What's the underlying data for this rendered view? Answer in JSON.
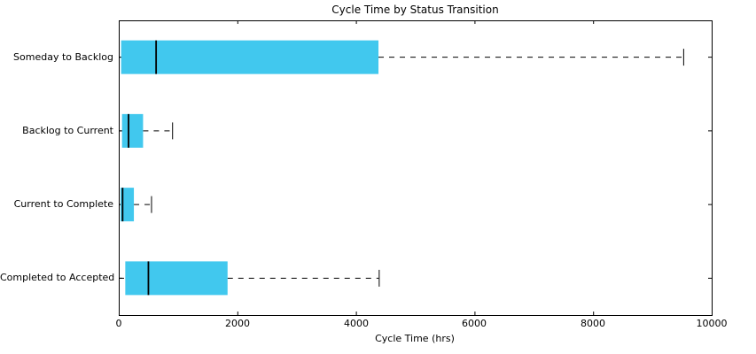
{
  "chart_data": {
    "type": "boxplot",
    "orientation": "horizontal",
    "title": "Cycle Time by Status Transition",
    "xlabel": "Cycle Time (hrs)",
    "ylabel": "",
    "xlim": [
      0,
      10000
    ],
    "xticks": [
      0,
      2000,
      4000,
      6000,
      8000,
      10000
    ],
    "xtick_labels": [
      "0",
      "2000",
      "4000",
      "6000",
      "8000",
      "10000"
    ],
    "grid": false,
    "legend": "none",
    "categories": [
      "Someday to Backlog",
      "Backlog to Current",
      "Current to Complete",
      "Completed to Accepted"
    ],
    "series": [
      {
        "category": "Someday to Backlog",
        "whisker_low": 0,
        "q1": 40,
        "median": 630,
        "q3": 4380,
        "whisker_high": 9520
      },
      {
        "category": "Backlog to Current",
        "whisker_low": 0,
        "q1": 55,
        "median": 165,
        "q3": 410,
        "whisker_high": 900
      },
      {
        "category": "Current to Complete",
        "whisker_low": 0,
        "q1": 30,
        "median": 65,
        "q3": 255,
        "whisker_high": 545
      },
      {
        "category": "Completed to Accepted",
        "whisker_low": 0,
        "q1": 110,
        "median": 500,
        "q3": 1835,
        "whisker_high": 4385
      }
    ],
    "colors": {
      "box_fill": "#41c8ee",
      "line": "#000000",
      "background": "#ffffff"
    }
  }
}
